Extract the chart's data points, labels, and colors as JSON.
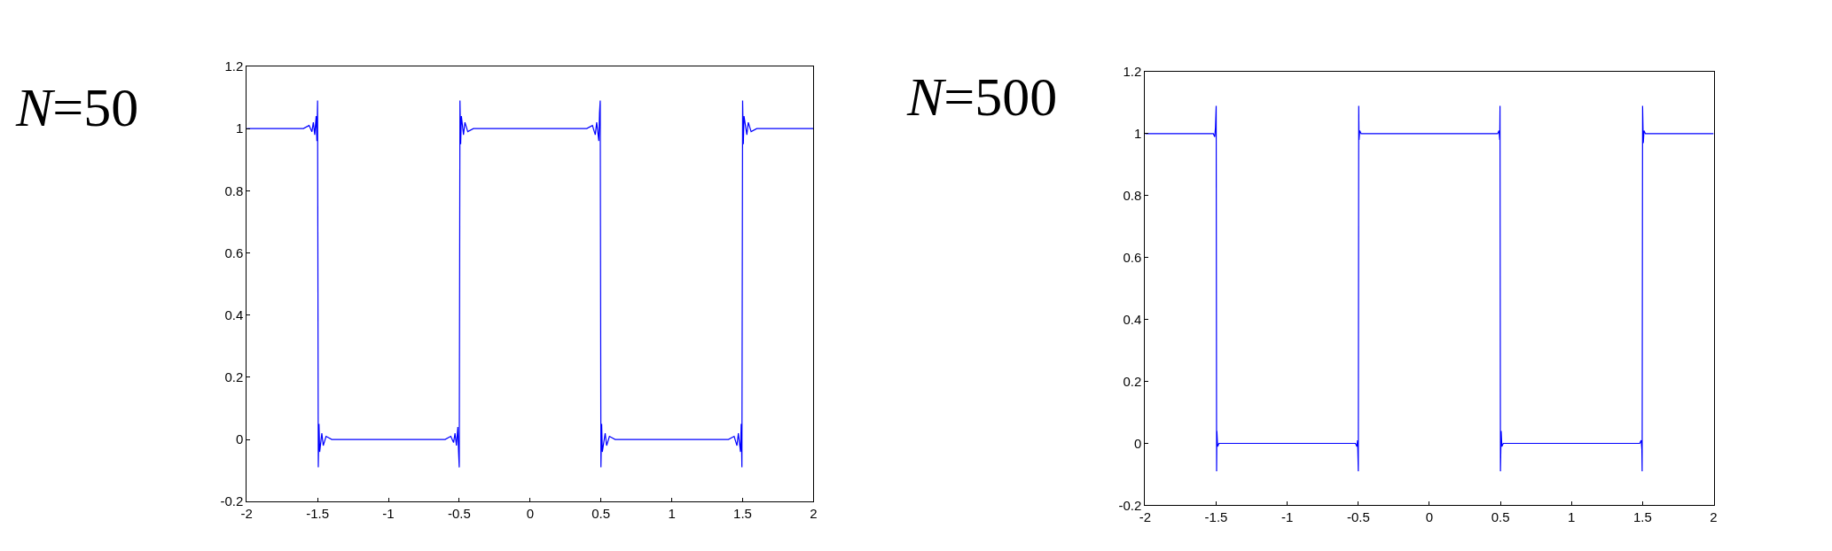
{
  "chart_data": [
    {
      "type": "line",
      "title": "N=50",
      "xlim": [
        -2,
        2
      ],
      "xticks": [
        -2,
        -1.5,
        -1,
        -0.5,
        0,
        0.5,
        1,
        1.5,
        2
      ],
      "ylim": [
        -0.2,
        1.2
      ],
      "yticks": [
        -0.2,
        0,
        0.2,
        0.4,
        0.6,
        0.8,
        1,
        1.2
      ],
      "series": [
        {
          "color": "#0000ff",
          "x": [
            -2,
            -1.8,
            -1.6,
            -1.56,
            -1.54,
            -1.53,
            -1.52,
            -1.51,
            -1.505,
            -1.5,
            -1.495,
            -1.49,
            -1.485,
            -1.47,
            -1.46,
            -1.44,
            -1.4,
            -1.0,
            -0.6,
            -0.56,
            -0.54,
            -0.53,
            -0.52,
            -0.51,
            -0.505,
            -0.5,
            -0.495,
            -0.49,
            -0.485,
            -0.47,
            -0.46,
            -0.44,
            -0.4,
            0,
            0.4,
            0.44,
            0.46,
            0.47,
            0.485,
            0.49,
            0.495,
            0.5,
            0.505,
            0.51,
            0.53,
            0.54,
            0.56,
            0.6,
            1.0,
            1.4,
            1.44,
            1.46,
            1.47,
            1.485,
            1.49,
            1.495,
            1.5,
            1.505,
            1.51,
            1.53,
            1.54,
            1.56,
            1.6,
            2
          ],
          "values": [
            1,
            1,
            1,
            1.01,
            0.99,
            1.02,
            0.98,
            1.04,
            0.96,
            1.09,
            -0.09,
            0.05,
            -0.04,
            0.02,
            -0.02,
            0.01,
            0,
            0,
            0,
            0.01,
            -0.01,
            0.02,
            -0.02,
            0.04,
            -0.04,
            -0.09,
            1.09,
            0.95,
            1.04,
            0.98,
            1.02,
            0.99,
            1,
            1,
            1,
            1.01,
            0.98,
            1.02,
            0.96,
            1.05,
            1.09,
            -0.09,
            0.05,
            -0.04,
            0.02,
            -0.02,
            0.01,
            0,
            0,
            0,
            0.01,
            -0.02,
            0.02,
            -0.04,
            0.05,
            -0.09,
            1.09,
            0.95,
            1.04,
            0.98,
            1.02,
            0.99,
            1,
            1
          ]
        }
      ]
    },
    {
      "type": "line",
      "title": "N=500",
      "xlim": [
        -2,
        2
      ],
      "xticks": [
        -2,
        -1.5,
        -1,
        -0.5,
        0,
        0.5,
        1,
        1.5,
        2
      ],
      "ylim": [
        -0.2,
        1.2
      ],
      "yticks": [
        -0.2,
        0,
        0.2,
        0.4,
        0.6,
        0.8,
        1,
        1.2
      ],
      "series": [
        {
          "color": "#0000ff",
          "x": [
            -2,
            -1.52,
            -1.51,
            -1.505,
            -1.5,
            -1.497,
            -1.495,
            -1.49,
            -1.48,
            -1.0,
            -0.52,
            -0.51,
            -0.505,
            -0.5,
            -0.497,
            -0.495,
            -0.49,
            -0.48,
            0,
            0.48,
            0.49,
            0.495,
            0.497,
            0.5,
            0.505,
            0.51,
            0.52,
            1.0,
            1.48,
            1.49,
            1.495,
            1.497,
            1.5,
            1.505,
            1.51,
            1.52,
            2
          ],
          "values": [
            1,
            1,
            0.99,
            1.02,
            1.09,
            -0.09,
            0.04,
            -0.01,
            0,
            0,
            0,
            -0.01,
            0.01,
            -0.09,
            1.09,
            0.98,
            1.01,
            1,
            1,
            1,
            1.01,
            0.98,
            1.09,
            -0.09,
            0.04,
            -0.01,
            0,
            0,
            0,
            0.01,
            -0.02,
            -0.09,
            1.09,
            0.97,
            1.01,
            1,
            1
          ]
        }
      ]
    }
  ]
}
